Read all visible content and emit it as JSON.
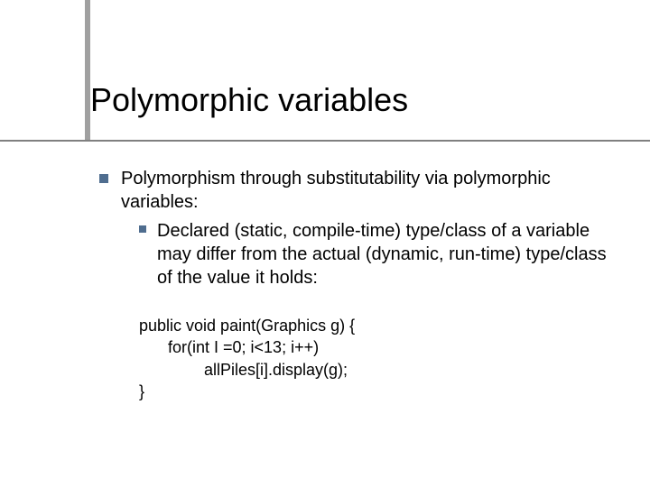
{
  "title": "Polymorphic variables",
  "bullet1": "Polymorphism through substitutability via polymorphic variables:",
  "bullet1_sub1": "Declared (static, compile-time) type/class of a variable may differ from the actual (dynamic, run-time) type/class of the value it holds:",
  "code": {
    "l1": "public void paint(Graphics g) {",
    "l2": "for(int I =0; i<13; i++)",
    "l3": "allPiles[i].display(g);",
    "l4": "}"
  },
  "colors": {
    "bullet": "#4f6d8f",
    "underline": "#808080",
    "accent": "#a0a0a0",
    "text": "#000000",
    "background": "#ffffff"
  },
  "fonts": {
    "title_size": 36,
    "body_size": 20,
    "code_size": 18
  }
}
